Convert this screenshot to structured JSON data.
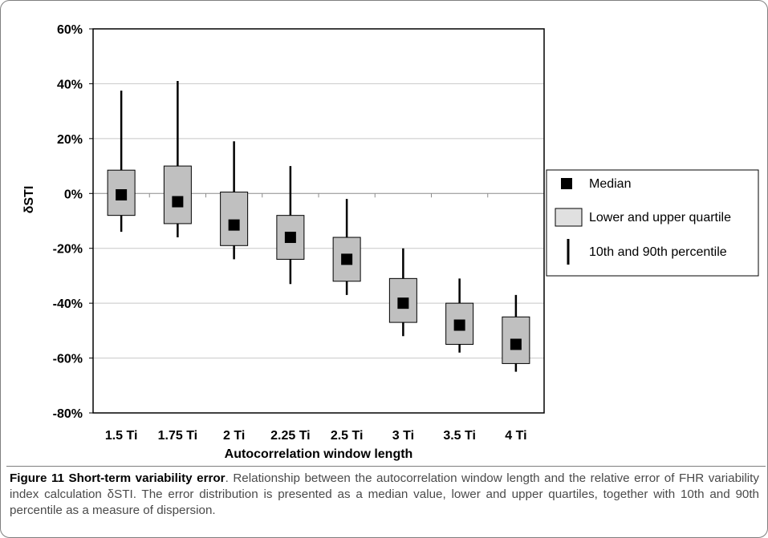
{
  "chart_data": {
    "type": "box",
    "categories": [
      "1.5 Ti",
      "1.75 Ti",
      "2 Ti",
      "2.25 Ti",
      "2.5 Ti",
      "3 Ti",
      "3.5 Ti",
      "4 Ti"
    ],
    "p10": [
      -14,
      -16,
      -24,
      -33,
      -37,
      -52,
      -58,
      -65
    ],
    "q1": [
      -8,
      -11,
      -19,
      -24,
      -32,
      -47,
      -55,
      -62
    ],
    "median": [
      -0.5,
      -3,
      -11.5,
      -16,
      -24,
      -40,
      -48,
      -55
    ],
    "q3": [
      8.5,
      10,
      0.5,
      -8,
      -16,
      -31,
      -40,
      -45
    ],
    "p90": [
      37.5,
      41,
      19,
      10,
      -2,
      -20,
      -31,
      -37
    ],
    "xlabel": "Autocorrelation window length",
    "ylabel": "δSTI",
    "ylim": [
      -80,
      60
    ],
    "yticks": [
      60,
      40,
      20,
      0,
      -20,
      -40,
      -60,
      -80
    ],
    "ytick_labels": [
      "60%",
      "40%",
      "20%",
      "0%",
      "-20%",
      "-40%",
      "-60%",
      "-80%"
    ],
    "grid": "horizontal",
    "legend_position": "right",
    "legend": [
      {
        "symbol": "median-square",
        "label": "Median"
      },
      {
        "symbol": "quartile-box",
        "label": "Lower and upper quartile"
      },
      {
        "symbol": "percentile-line",
        "label": "10th and 90th percentile"
      }
    ],
    "colors": {
      "box_fill": "#c0c0c0",
      "legend_box_fill": "#e0e0e0",
      "median": "#000000",
      "grid": "#c8c8c8",
      "zero_line": "#8c8c8c"
    }
  },
  "caption": {
    "title": "Figure 11 Short-term variability error",
    "body": ". Relationship between the autocorrelation window length and the relative error of FHR variability index calculation δSTI. The error distribution is presented as a median value, lower and upper quartiles, together with 10th and 90th percentile as a measure of dispersion."
  }
}
